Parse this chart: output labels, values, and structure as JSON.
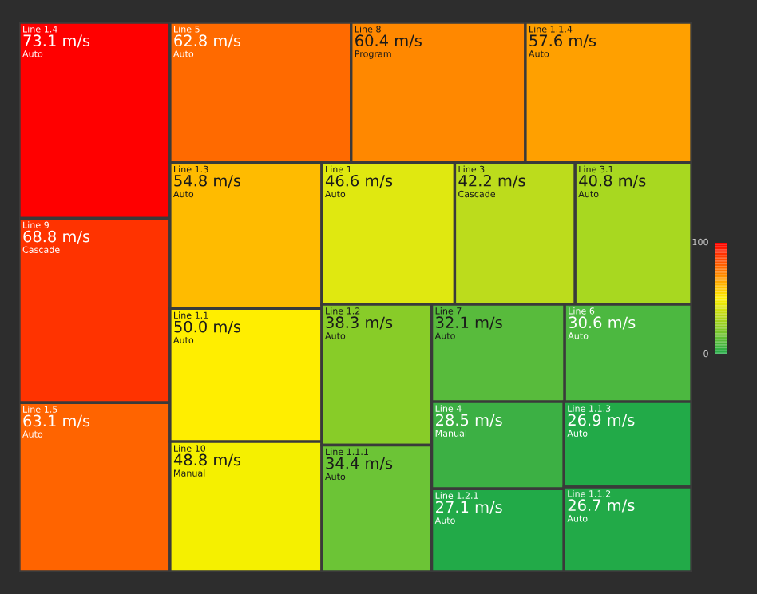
{
  "chart_data": {
    "type": "other",
    "categories": [
      "Line 1.4",
      "Line 9",
      "Line 1.5",
      "Line 5",
      "Line 8",
      "Line 1.1.4",
      "Line 1.3",
      "Line 1.1",
      "Line 10",
      "Line 1",
      "Line 3",
      "Line 3.1",
      "Line 1.2",
      "Line 1.1.1",
      "Line 7",
      "Line 6",
      "Line 4",
      "Line 1.2.1",
      "Line 1.1.3",
      "Line 1.1.2"
    ],
    "values": [
      73.1,
      68.8,
      63.1,
      62.8,
      60.4,
      57.6,
      54.8,
      50.0,
      48.8,
      46.6,
      42.2,
      40.8,
      38.3,
      34.4,
      32.1,
      30.6,
      28.5,
      27.1,
      26.9,
      26.7
    ],
    "value_labels": [
      "73.1 m/s",
      "68.8 m/s",
      "63.1 m/s",
      "62.8 m/s",
      "60.4 m/s",
      "57.6 m/s",
      "54.8 m/s",
      "50.0 m/s",
      "48.8 m/s",
      "46.6 m/s",
      "42.2 m/s",
      "40.8 m/s",
      "38.3 m/s",
      "34.4 m/s",
      "32.1 m/s",
      "30.6 m/s",
      "28.5 m/s",
      "27.1 m/s",
      "26.9 m/s",
      "26.7 m/s"
    ],
    "annotations": [
      "Auto",
      "Cascade",
      "Auto",
      "Auto",
      "Program",
      "Auto",
      "Auto",
      "Auto",
      "Manual",
      "Auto",
      "Cascade",
      "Auto",
      "Auto",
      "Auto",
      "Auto",
      "Auto",
      "Manual",
      "Auto",
      "Auto",
      "Auto",
      "100",
      "0"
    ],
    "colors": [
      "#ff0000",
      "#ff3300",
      "#ff6400",
      "#ff6a00",
      "#ff8800",
      "#ffa000",
      "#ffbb00",
      "#ffee00",
      "#f5f000",
      "#e0e810",
      "#bcdc1c",
      "#a8d820",
      "#88cc28",
      "#6cc436",
      "#58bb3c",
      "#4cb840",
      "#3cb044",
      "#22aa48",
      "#22aa48",
      "#22aa48"
    ]
  }
}
